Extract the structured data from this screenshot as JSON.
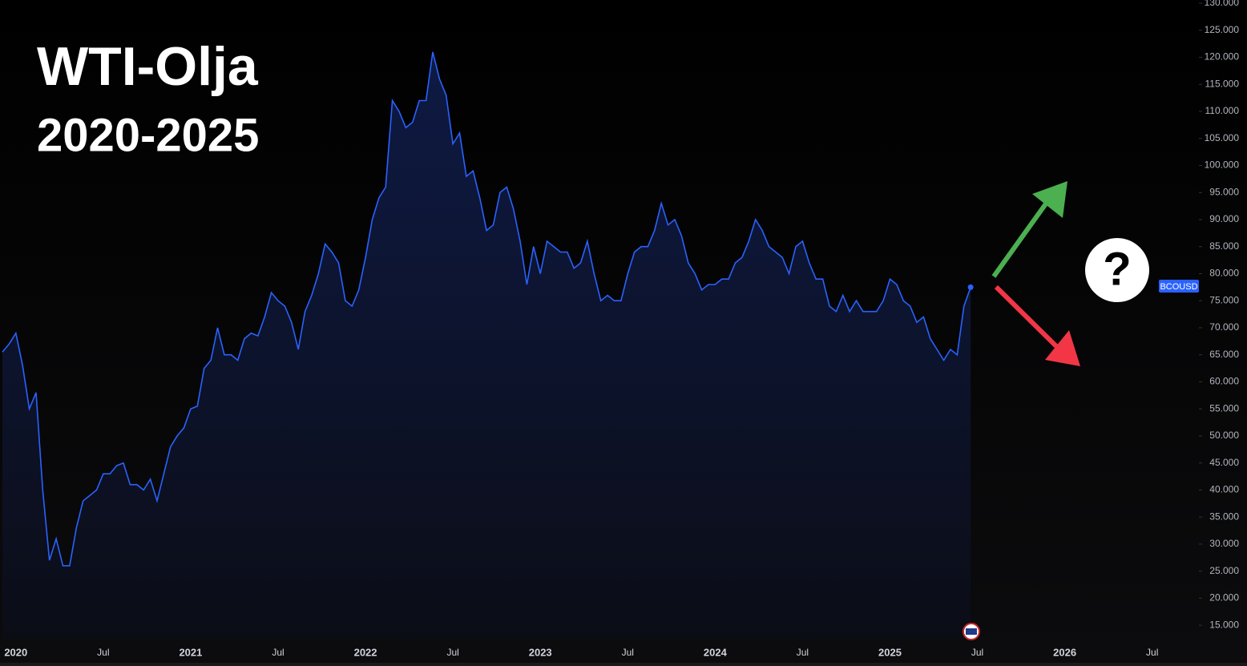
{
  "chart_data": {
    "type": "line",
    "title": "WTI-Olja",
    "subtitle": "2020-2025",
    "symbol": "BCOUSD",
    "annotation": "?",
    "categories": [
      null,
      null,
      "2020",
      null,
      null,
      null,
      null,
      null,
      null,
      null,
      null,
      null,
      null,
      null,
      null,
      "Jul",
      null,
      null,
      null,
      null,
      null,
      null,
      null,
      null,
      null,
      null,
      null,
      null,
      "2021",
      null,
      null,
      null,
      null,
      null,
      null,
      null,
      null,
      null,
      null,
      null,
      null,
      "Jul",
      null,
      null,
      null,
      null,
      null,
      null,
      null,
      null,
      null,
      null,
      null,
      null,
      "2022",
      null,
      null,
      null,
      null,
      null,
      null,
      null,
      null,
      null,
      null,
      null,
      null,
      "Jul",
      null,
      null,
      null,
      null,
      null,
      null,
      null,
      null,
      null,
      null,
      null,
      null,
      "2023",
      null,
      null,
      null,
      null,
      null,
      null,
      null,
      null,
      null,
      null,
      null,
      null,
      "Jul",
      null,
      null,
      null,
      null,
      null,
      null,
      null,
      null,
      null,
      null,
      null,
      null,
      "2024",
      null,
      null,
      null,
      null,
      null,
      null,
      null,
      null,
      null,
      null,
      null,
      null,
      "Jul",
      null,
      null,
      null,
      null,
      null,
      null,
      null,
      null,
      null,
      null,
      null,
      null,
      "2025",
      null,
      null,
      null,
      null,
      null,
      null,
      null,
      null,
      null,
      null,
      null,
      null,
      "Jul",
      null,
      null,
      null,
      null,
      null,
      null,
      null,
      null,
      null,
      null,
      null,
      null,
      "2026",
      null,
      null,
      null,
      null,
      null,
      null,
      null,
      null,
      null,
      null,
      null,
      null,
      "Jul",
      null,
      null,
      null,
      null
    ],
    "series": [
      {
        "name": "BCOUSD",
        "color": "#2962ff",
        "values": [
          65.5,
          67,
          69,
          63,
          55,
          58,
          40,
          27,
          31,
          26,
          26,
          33,
          38,
          39,
          40,
          43,
          43,
          44.5,
          45,
          41,
          41,
          40,
          42,
          38,
          43,
          48,
          50,
          51.5,
          55,
          55.5,
          62.5,
          64,
          70,
          65,
          65,
          64,
          68,
          69,
          68.5,
          72,
          76.5,
          75,
          74,
          71,
          66,
          73,
          76,
          80,
          85.5,
          84,
          82,
          75,
          74,
          77,
          83,
          90,
          94,
          96,
          112,
          110,
          107,
          108,
          112,
          112,
          121,
          116,
          113,
          104,
          106,
          98,
          99,
          94,
          88,
          89,
          95,
          96,
          92,
          86,
          78,
          85,
          80,
          86,
          85,
          84,
          84,
          81,
          82,
          86,
          80,
          75,
          76,
          75,
          75,
          80,
          84,
          85,
          85,
          88,
          93,
          89,
          90,
          87,
          82,
          80,
          77,
          78,
          78,
          79,
          79,
          82,
          83,
          86,
          90,
          88,
          85,
          84,
          83,
          80,
          85,
          86,
          82,
          79,
          79,
          74,
          73,
          76,
          73,
          75,
          73,
          73,
          73,
          75,
          79,
          78,
          75,
          74,
          71,
          72,
          68,
          66,
          64,
          66,
          65,
          74,
          77.5,
          null,
          null,
          null,
          null,
          null,
          null,
          null,
          null,
          null,
          null,
          null,
          null,
          null,
          null,
          null,
          null,
          null,
          null,
          null,
          null,
          null,
          null,
          null,
          null,
          null,
          null,
          null,
          null,
          null,
          null,
          null
        ]
      }
    ],
    "ylim": [
      12.5,
      130.6
    ],
    "yticks": [
      {
        "value": 15,
        "label": "15.000"
      },
      {
        "value": 20,
        "label": "20.000"
      },
      {
        "value": 25,
        "label": "25.000"
      },
      {
        "value": 30,
        "label": "30.000"
      },
      {
        "value": 35,
        "label": "35.000"
      },
      {
        "value": 40,
        "label": "40.000"
      },
      {
        "value": 45,
        "label": "45.000"
      },
      {
        "value": 50,
        "label": "50.000"
      },
      {
        "value": 55,
        "label": "55.000"
      },
      {
        "value": 60,
        "label": "60.000"
      },
      {
        "value": 65,
        "label": "65.000"
      },
      {
        "value": 70,
        "label": "70.000"
      },
      {
        "value": 75,
        "label": "75.000"
      },
      {
        "value": 80,
        "label": "80.000"
      },
      {
        "value": 85,
        "label": "85.000"
      },
      {
        "value": 90,
        "label": "90.000"
      },
      {
        "value": 95,
        "label": "95.000"
      },
      {
        "value": 100,
        "label": "100.000"
      },
      {
        "value": 105,
        "label": "105.000"
      },
      {
        "value": 110,
        "label": "110.000"
      },
      {
        "value": 115,
        "label": "115.000"
      },
      {
        "value": 120,
        "label": "120.000"
      },
      {
        "value": 125,
        "label": "125.000"
      },
      {
        "value": 130,
        "label": "130.000"
      }
    ],
    "grid": false
  }
}
